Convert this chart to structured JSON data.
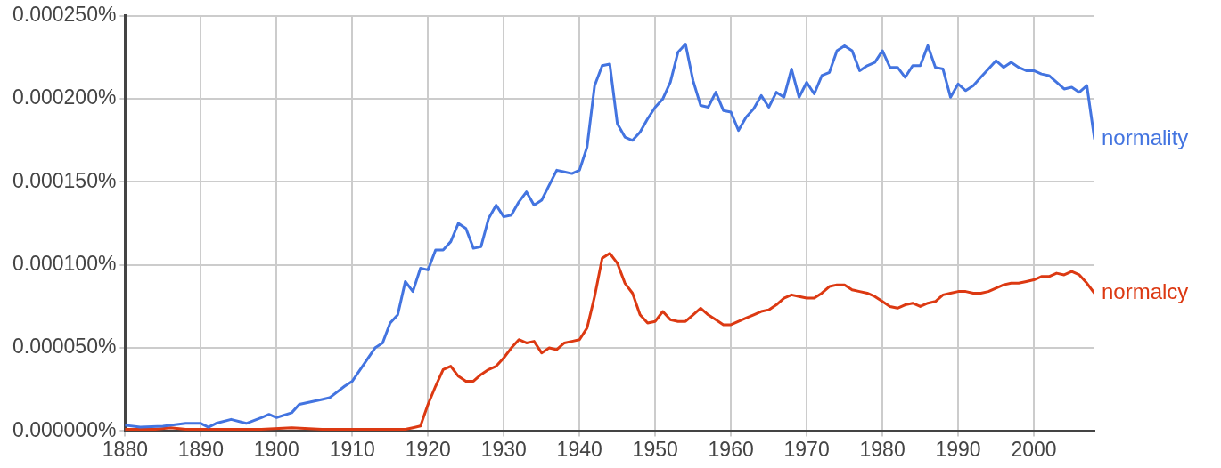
{
  "chart_data": {
    "type": "line",
    "xlim": [
      1880,
      2008
    ],
    "xticks": [
      1880,
      1890,
      1900,
      1910,
      1920,
      1930,
      1940,
      1950,
      1960,
      1970,
      1980,
      1990,
      2000
    ],
    "ylim": [
      0,
      0.00025
    ],
    "yticks": [
      {
        "value": 0,
        "label": "0.000000%"
      },
      {
        "value": 5e-05,
        "label": "0.000050%"
      },
      {
        "value": 0.0001,
        "label": "0.000100%"
      },
      {
        "value": 0.00015,
        "label": "0.000150%"
      },
      {
        "value": 0.0002,
        "label": "0.000200%"
      },
      {
        "value": 0.00025,
        "label": "0.000250%"
      }
    ],
    "grid": true,
    "marker": "none",
    "series": [
      {
        "name": "normality",
        "color": "#4374e0",
        "x": [
          1880,
          1882,
          1885,
          1888,
          1890,
          1891,
          1892,
          1894,
          1896,
          1898,
          1899,
          1900,
          1902,
          1903,
          1906,
          1907,
          1909,
          1910,
          1913,
          1914,
          1915,
          1916,
          1917,
          1918,
          1919,
          1920,
          1921,
          1922,
          1923,
          1924,
          1925,
          1926,
          1927,
          1928,
          1929,
          1930,
          1931,
          1932,
          1933,
          1934,
          1935,
          1936,
          1937,
          1938,
          1939,
          1940,
          1941,
          1942,
          1943,
          1944,
          1945,
          1946,
          1947,
          1948,
          1949,
          1950,
          1951,
          1952,
          1953,
          1954,
          1955,
          1956,
          1957,
          1958,
          1959,
          1960,
          1961,
          1962,
          1963,
          1964,
          1965,
          1966,
          1967,
          1968,
          1969,
          1970,
          1971,
          1972,
          1973,
          1974,
          1975,
          1976,
          1977,
          1978,
          1979,
          1980,
          1981,
          1982,
          1983,
          1984,
          1985,
          1986,
          1987,
          1988,
          1989,
          1990,
          1991,
          1992,
          1993,
          1994,
          1995,
          1996,
          1997,
          1998,
          1999,
          2000,
          2001,
          2002,
          2003,
          2004,
          2005,
          2006,
          2007,
          2008
        ],
        "values": [
          3.5e-06,
          2.3e-06,
          2.9e-06,
          4.6e-06,
          4.6e-06,
          2.3e-06,
          4.6e-06,
          7e-06,
          4.6e-06,
          8.1e-06,
          1e-05,
          8.1e-06,
          1.1e-05,
          1.6e-05,
          1.9e-05,
          2e-05,
          2.7e-05,
          3e-05,
          5e-05,
          5.3e-05,
          6.5e-05,
          7e-05,
          9e-05,
          8.4e-05,
          9.8e-05,
          9.7e-05,
          0.000109,
          0.000109,
          0.000114,
          0.000125,
          0.000122,
          0.00011,
          0.000111,
          0.000128,
          0.000136,
          0.000129,
          0.00013,
          0.000138,
          0.000144,
          0.000136,
          0.000139,
          0.000148,
          0.000157,
          0.000156,
          0.000155,
          0.000157,
          0.000171,
          0.000208,
          0.00022,
          0.000221,
          0.000185,
          0.000177,
          0.000175,
          0.00018,
          0.000188,
          0.000195,
          0.0002,
          0.00021,
          0.000228,
          0.000233,
          0.000211,
          0.000196,
          0.000195,
          0.000204,
          0.000193,
          0.000192,
          0.000181,
          0.000189,
          0.000194,
          0.000202,
          0.000195,
          0.000204,
          0.000201,
          0.000218,
          0.000201,
          0.00021,
          0.000203,
          0.000214,
          0.000216,
          0.000229,
          0.000232,
          0.000229,
          0.000217,
          0.00022,
          0.000222,
          0.000229,
          0.000219,
          0.000219,
          0.000213,
          0.00022,
          0.00022,
          0.000232,
          0.000219,
          0.000218,
          0.000201,
          0.000209,
          0.000205,
          0.000208,
          0.000213,
          0.000218,
          0.000223,
          0.000219,
          0.000222,
          0.000219,
          0.000217,
          0.000217,
          0.000215,
          0.000214,
          0.00021,
          0.000206,
          0.000207,
          0.000204,
          0.000208,
          0.000176
        ]
      },
      {
        "name": "normalcy",
        "color": "#dc3912",
        "x": [
          1880,
          1884,
          1886,
          1888,
          1890,
          1894,
          1898,
          1902,
          1906,
          1910,
          1914,
          1917,
          1918,
          1919,
          1920,
          1921,
          1922,
          1923,
          1924,
          1925,
          1926,
          1927,
          1928,
          1929,
          1930,
          1931,
          1932,
          1933,
          1934,
          1935,
          1936,
          1937,
          1938,
          1939,
          1940,
          1941,
          1942,
          1943,
          1944,
          1945,
          1946,
          1947,
          1948,
          1949,
          1950,
          1951,
          1952,
          1953,
          1954,
          1955,
          1956,
          1957,
          1958,
          1959,
          1960,
          1961,
          1962,
          1963,
          1964,
          1965,
          1966,
          1967,
          1968,
          1969,
          1970,
          1971,
          1972,
          1973,
          1974,
          1975,
          1976,
          1977,
          1978,
          1979,
          1980,
          1981,
          1982,
          1983,
          1984,
          1985,
          1986,
          1987,
          1988,
          1989,
          1990,
          1991,
          1992,
          1993,
          1994,
          1995,
          1996,
          1997,
          1998,
          1999,
          2000,
          2001,
          2002,
          2003,
          2004,
          2005,
          2006,
          2007,
          2008
        ],
        "values": [
          1e-06,
          1e-06,
          2e-06,
          1e-06,
          1e-06,
          1e-06,
          1e-06,
          2e-06,
          1e-06,
          1e-06,
          1e-06,
          1e-06,
          2e-06,
          3e-06,
          1.6e-05,
          2.7e-05,
          3.7e-05,
          3.9e-05,
          3.3e-05,
          3e-05,
          3e-05,
          3.4e-05,
          3.7e-05,
          3.9e-05,
          4.4e-05,
          5e-05,
          5.5e-05,
          5.3e-05,
          5.4e-05,
          4.7e-05,
          5e-05,
          4.9e-05,
          5.3e-05,
          5.4e-05,
          5.5e-05,
          6.2e-05,
          8.1e-05,
          0.000104,
          0.000107,
          0.000101,
          8.9e-05,
          8.3e-05,
          7e-05,
          6.5e-05,
          6.6e-05,
          7.2e-05,
          6.7e-05,
          6.6e-05,
          6.6e-05,
          7e-05,
          7.4e-05,
          7e-05,
          6.7e-05,
          6.4e-05,
          6.4e-05,
          6.6e-05,
          6.8e-05,
          7e-05,
          7.2e-05,
          7.3e-05,
          7.6e-05,
          8e-05,
          8.2e-05,
          8.1e-05,
          8e-05,
          8e-05,
          8.3e-05,
          8.7e-05,
          8.8e-05,
          8.8e-05,
          8.5e-05,
          8.4e-05,
          8.3e-05,
          8.1e-05,
          7.8e-05,
          7.5e-05,
          7.4e-05,
          7.6e-05,
          7.7e-05,
          7.5e-05,
          7.7e-05,
          7.8e-05,
          8.2e-05,
          8.3e-05,
          8.4e-05,
          8.4e-05,
          8.3e-05,
          8.3e-05,
          8.4e-05,
          8.6e-05,
          8.8e-05,
          8.9e-05,
          8.9e-05,
          9e-05,
          9.1e-05,
          9.3e-05,
          9.3e-05,
          9.5e-05,
          9.4e-05,
          9.6e-05,
          9.4e-05,
          8.9e-05,
          8.3e-05
        ]
      }
    ]
  }
}
